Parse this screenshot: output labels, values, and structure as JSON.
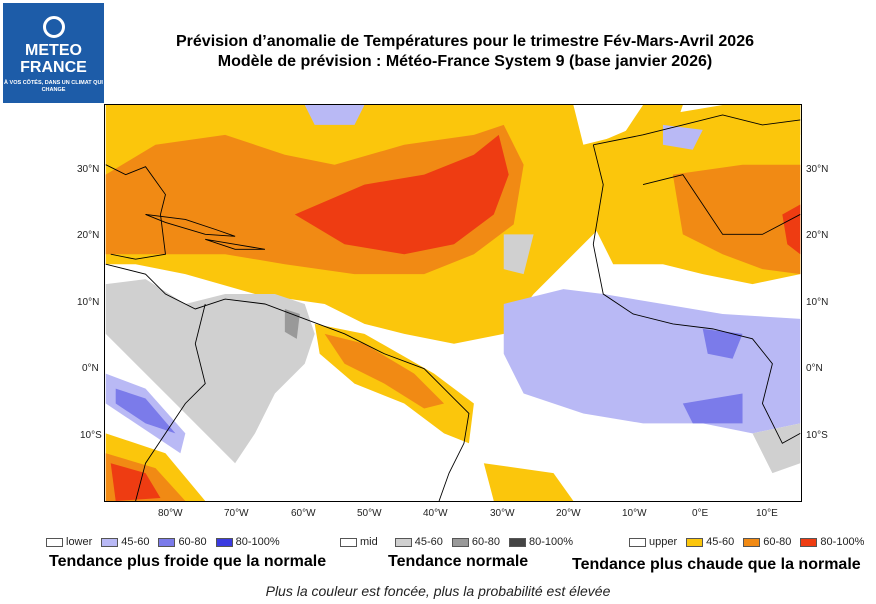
{
  "logo": {
    "line1": "METEO",
    "line2": "FRANCE",
    "tagline": "À VOS CÔTÉS, DANS UN CLIMAT QUI CHANGE"
  },
  "title": {
    "line1": "Prévision d’anomalie de Températures pour le trimestre Fév-Mars-Avril 2026",
    "line2": "Modèle de prévision : Météo-France System 9 (base janvier 2026)"
  },
  "map": {
    "lon_ticks": [
      "80°W",
      "70°W",
      "60°W",
      "50°W",
      "40°W",
      "30°W",
      "20°W",
      "10°W",
      "0°E",
      "10°E"
    ],
    "lat_ticks": [
      "30°N",
      "20°N",
      "10°N",
      "0°N",
      "10°S"
    ]
  },
  "legend": {
    "lower": {
      "label": "lower",
      "items": [
        "45-60",
        "60-80",
        "80-100%"
      ],
      "colors": [
        "#b9b9f5",
        "#7b7bea",
        "#3a3ae0"
      ],
      "title": "Tendance plus froide que la normale"
    },
    "mid": {
      "label": "mid",
      "items": [
        "45-60",
        "60-80",
        "80-100%"
      ],
      "colors": [
        "#d0d0d0",
        "#999999",
        "#444444"
      ],
      "title": "Tendance normale"
    },
    "upper": {
      "label": "upper",
      "items": [
        "45-60",
        "60-80",
        "80-100%"
      ],
      "colors": [
        "#fbc60c",
        "#f18a14",
        "#ee3c12"
      ],
      "title": "Tendance plus chaude que la normale"
    }
  },
  "footer": "Plus la couleur est foncée, plus la probabilité est élevée"
}
